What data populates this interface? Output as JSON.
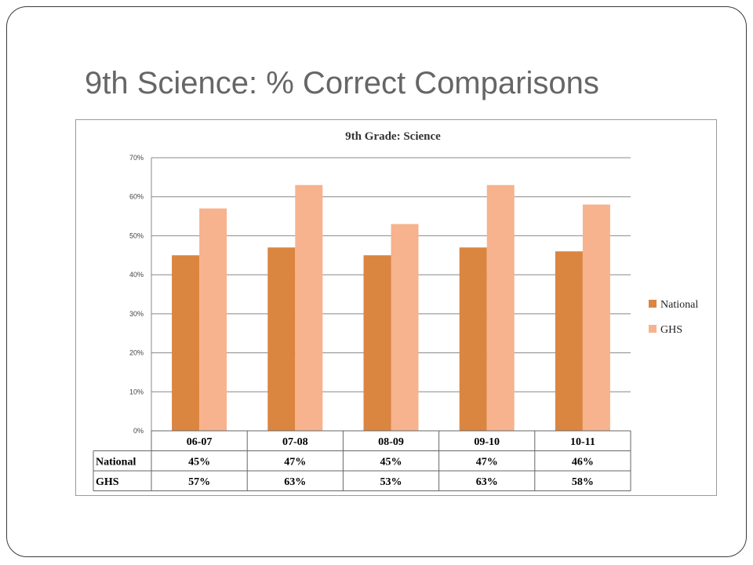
{
  "slide": {
    "title": "9th Science:  % Correct Comparisons"
  },
  "colors": {
    "national": "#DA8540",
    "ghs": "#F6B38E",
    "gridline": "#888888",
    "title_text": "#666666"
  },
  "chart_data": {
    "type": "bar",
    "title": "9th Grade: Science",
    "categories": [
      "06-07",
      "07-08",
      "08-09",
      "09-10",
      "10-11"
    ],
    "series": [
      {
        "name": "National",
        "values": [
          45,
          47,
          45,
          47,
          46
        ],
        "labels": [
          "45%",
          "47%",
          "45%",
          "47%",
          "46%"
        ],
        "color": "#DA8540"
      },
      {
        "name": "GHS",
        "values": [
          57,
          63,
          53,
          63,
          58
        ],
        "labels": [
          "57%",
          "63%",
          "53%",
          "63%",
          "58%"
        ],
        "color": "#F6B38E"
      }
    ],
    "yticks": [
      "0%",
      "10%",
      "20%",
      "30%",
      "40%",
      "50%",
      "60%",
      "70%"
    ],
    "ylim": [
      0,
      70
    ],
    "xlabel": "",
    "ylabel": "",
    "grid": true,
    "legend_position": "right",
    "data_table": true
  }
}
